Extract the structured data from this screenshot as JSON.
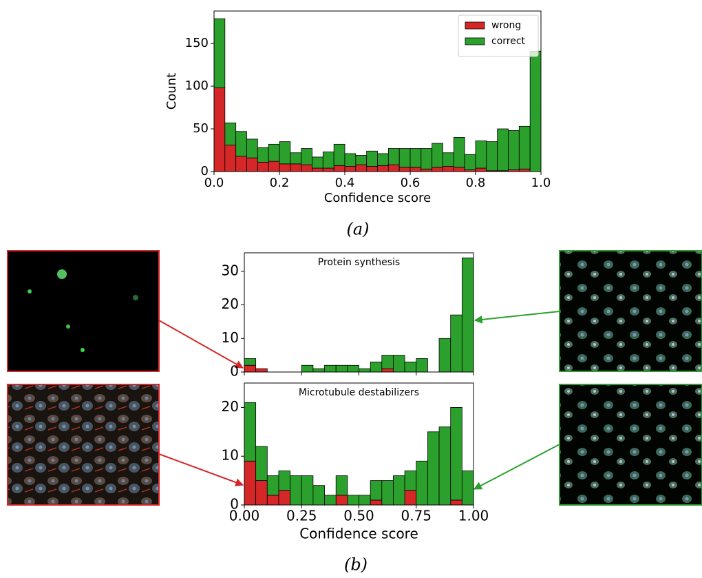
{
  "chart_data": [
    {
      "type": "histogram",
      "stacked": true,
      "xlabel": "Confidence score",
      "ylabel": "Count",
      "bins": [
        0,
        0.0333,
        0.0667,
        0.1,
        0.1333,
        0.1667,
        0.2,
        0.2333,
        0.2667,
        0.3,
        0.3333,
        0.3667,
        0.4,
        0.4333,
        0.4667,
        0.5,
        0.5333,
        0.5667,
        0.6,
        0.6333,
        0.6667,
        0.7,
        0.7333,
        0.7667,
        0.8,
        0.8333,
        0.8667,
        0.9,
        0.9333,
        0.9667,
        1
      ],
      "series": [
        {
          "name": "wrong",
          "color": "#d62728",
          "values": [
            98,
            31,
            18,
            16,
            11,
            12,
            9,
            9,
            8,
            4,
            4,
            7,
            6,
            8,
            6,
            7,
            8,
            5,
            5,
            3,
            5,
            6,
            5,
            2,
            4,
            1,
            1,
            2,
            3,
            0
          ]
        },
        {
          "name": "correct",
          "color": "#2ca02c",
          "values": [
            81,
            26,
            29,
            22,
            17,
            20,
            26,
            13,
            19,
            13,
            19,
            25,
            15,
            11,
            18,
            14,
            19,
            22,
            22,
            24,
            28,
            16,
            35,
            18,
            32,
            34,
            49,
            46,
            50,
            141
          ]
        }
      ],
      "xlim": [
        0,
        1
      ],
      "ylim": [
        0,
        188
      ],
      "xticks": [
        {
          "value": 0,
          "label": "0.0"
        },
        0.2,
        0.4,
        0.6,
        0.8,
        {
          "value": 1,
          "label": "1.0"
        }
      ],
      "yticks": [
        0,
        50,
        100,
        150
      ],
      "legend": "upper right"
    },
    {
      "type": "histogram",
      "stacked": true,
      "title": "Protein synthesis",
      "bins": [
        0,
        0.05,
        0.1,
        0.15,
        0.2,
        0.25,
        0.3,
        0.35,
        0.4,
        0.45,
        0.5,
        0.55,
        0.6,
        0.65,
        0.7,
        0.75,
        0.8,
        0.85,
        0.9,
        0.95,
        1
      ],
      "series": [
        {
          "color": "#d62728",
          "values": [
            2,
            1,
            0,
            0,
            0,
            0,
            0,
            0,
            0,
            0,
            0,
            0,
            1,
            0,
            0,
            0,
            0,
            0,
            0,
            0
          ]
        },
        {
          "color": "#2ca02c",
          "values": [
            2,
            0,
            0,
            0,
            0,
            2,
            1,
            2,
            2,
            2,
            1,
            3,
            4,
            5,
            3,
            4,
            0,
            10,
            17,
            34
          ]
        }
      ],
      "xlim": [
        0,
        1
      ],
      "ylim": [
        0,
        35.5
      ],
      "xticks": [
        0,
        0.25,
        0.5,
        0.75,
        1
      ],
      "show_xtick_labels": false,
      "yticks": [
        0,
        10,
        20,
        30
      ]
    },
    {
      "type": "histogram",
      "stacked": true,
      "title": "Microtubule destabilizers",
      "xlabel": "Confidence score",
      "bins": [
        0,
        0.05,
        0.1,
        0.15,
        0.2,
        0.25,
        0.3,
        0.35,
        0.4,
        0.45,
        0.5,
        0.55,
        0.6,
        0.65,
        0.7,
        0.75,
        0.8,
        0.85,
        0.9,
        0.95,
        1
      ],
      "series": [
        {
          "color": "#d62728",
          "values": [
            9,
            5,
            2,
            3,
            0,
            0,
            0,
            0,
            2,
            0,
            0,
            1,
            0,
            0,
            3,
            0,
            0,
            0,
            1,
            0
          ]
        },
        {
          "color": "#2ca02c",
          "values": [
            12,
            7,
            4,
            4,
            6,
            6,
            4,
            2,
            4,
            2,
            2,
            4,
            5,
            6,
            4,
            9,
            15,
            16,
            19,
            7
          ]
        }
      ],
      "xlim": [
        0,
        1
      ],
      "ylim": [
        0,
        25
      ],
      "xticks": [
        {
          "value": 0,
          "label": "0.00"
        },
        0.25,
        {
          "value": 0.5,
          "label": "0.50"
        },
        0.75,
        {
          "value": 1,
          "label": "1.00"
        }
      ],
      "show_xtick_labels": true,
      "yticks": [
        0,
        10,
        20
      ]
    }
  ],
  "captions": {
    "a": "(a)",
    "b": "(b)"
  }
}
